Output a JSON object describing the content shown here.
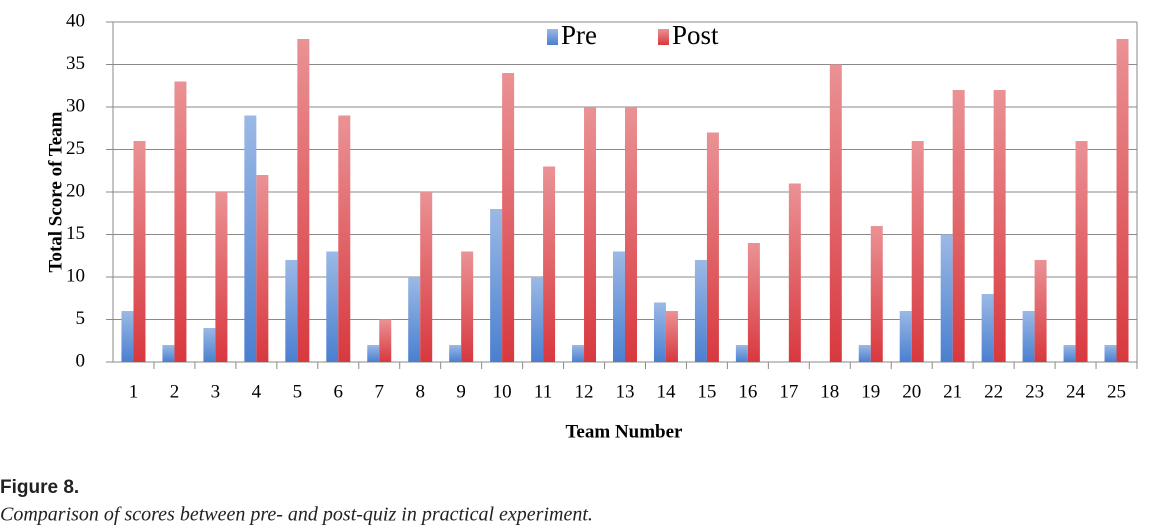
{
  "chart_data": {
    "type": "bar",
    "xlabel": "Team Number",
    "ylabel": "Total Score of  Team",
    "categories": [
      "1",
      "2",
      "3",
      "4",
      "5",
      "6",
      "7",
      "8",
      "9",
      "10",
      "11",
      "12",
      "13",
      "14",
      "15",
      "16",
      "17",
      "18",
      "19",
      "20",
      "21",
      "22",
      "23",
      "24",
      "25"
    ],
    "series": [
      {
        "name": "Pre",
        "color": "#4a7fd0",
        "values": [
          6,
          2,
          4,
          29,
          12,
          13,
          2,
          10,
          2,
          18,
          10,
          2,
          13,
          7,
          12,
          2,
          0,
          0,
          2,
          6,
          15,
          8,
          6,
          2,
          2
        ]
      },
      {
        "name": "Post",
        "color": "#d8383e",
        "values": [
          26,
          33,
          20,
          22,
          38,
          29,
          5,
          20,
          13,
          34,
          23,
          30,
          30,
          6,
          27,
          14,
          21,
          35,
          16,
          26,
          32,
          32,
          12,
          26,
          38
        ]
      }
    ],
    "ylim": [
      0,
      40
    ],
    "yticks": [
      0,
      5,
      10,
      15,
      20,
      25,
      30,
      35,
      40
    ],
    "grid": true,
    "legend": "top"
  },
  "caption": {
    "label": "Figure 8.",
    "text": "Comparison of scores between pre- and post-quiz in practical experiment."
  }
}
